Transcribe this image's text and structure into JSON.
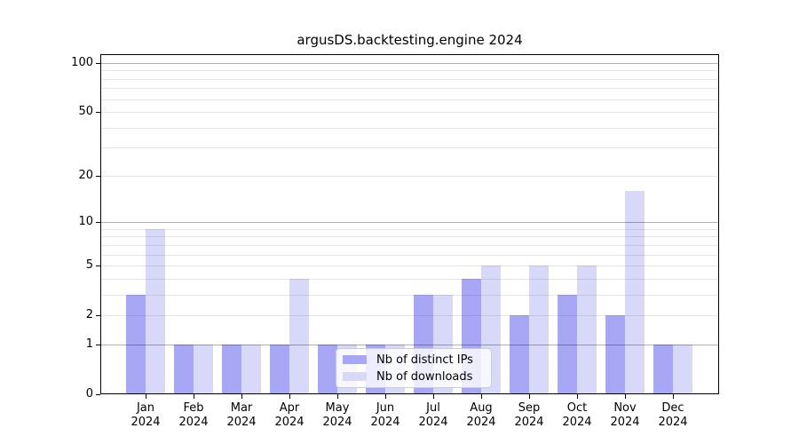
{
  "title": "argusDS.backtesting.engine 2024",
  "chart_data": {
    "type": "bar",
    "title": "argusDS.backtesting.engine 2024",
    "xlabel": "",
    "ylabel": "",
    "categories": [
      "Jan",
      "Feb",
      "Mar",
      "Apr",
      "May",
      "Jun",
      "Jul",
      "Aug",
      "Sep",
      "Oct",
      "Nov",
      "Dec"
    ],
    "year": "2024",
    "series": [
      {
        "name": "Nb of distinct IPs",
        "color": "#a7a7f6",
        "values": [
          3,
          1,
          1,
          1,
          1,
          1,
          3,
          4,
          2,
          3,
          2,
          1
        ]
      },
      {
        "name": "Nb of downloads",
        "color": "#d8d8f8",
        "values": [
          9,
          1,
          1,
          4,
          1,
          1,
          3,
          5,
          5,
          5,
          16,
          1
        ]
      }
    ],
    "yscale": "log1p",
    "ylim": [
      0,
      113
    ],
    "yticks": [
      0,
      1,
      2,
      5,
      10,
      20,
      50,
      100
    ],
    "major_grid_values": [
      1,
      10,
      100
    ],
    "minor_grid_values": [
      2,
      3,
      4,
      5,
      6,
      7,
      8,
      9,
      20,
      30,
      40,
      50,
      60,
      70,
      80,
      90
    ],
    "grid": true,
    "legend_position": "lower center"
  },
  "colors": {
    "distinct_ips": "#a7a7f6",
    "downloads": "#d8d8f8",
    "grid_major": "#b0b0b0",
    "grid_minor": "#e7e7e7"
  }
}
